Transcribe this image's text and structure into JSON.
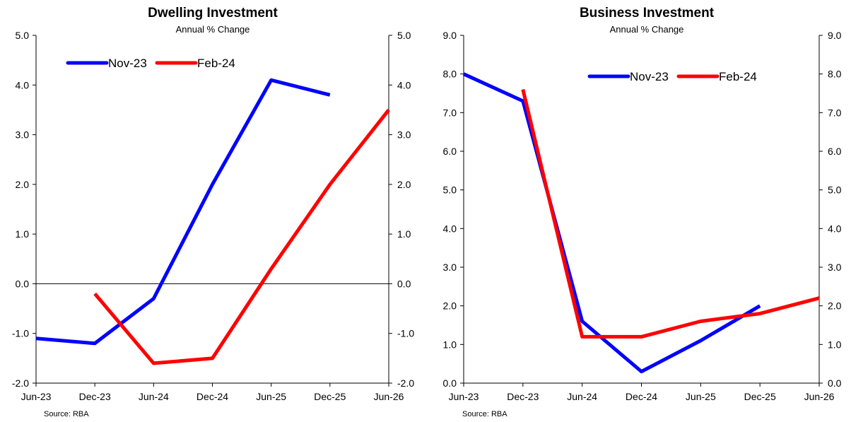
{
  "chart_data": [
    {
      "type": "line",
      "title": "Dwelling Investment",
      "subtitle": "Annual % Change",
      "source": "Source: RBA",
      "categories": [
        "Jun-23",
        "Dec-23",
        "Jun-24",
        "Dec-24",
        "Jun-25",
        "Dec-25",
        "Jun-26"
      ],
      "ylim": [
        -2.0,
        5.0
      ],
      "yticks": [
        "-2.0",
        "-1.0",
        "0.0",
        "1.0",
        "2.0",
        "3.0",
        "4.0",
        "5.0"
      ],
      "legend_position": "top-left",
      "grid": false,
      "zero_line": true,
      "series": [
        {
          "name": "Nov-23",
          "color": "#0000ff",
          "values": [
            -1.1,
            -1.2,
            -0.3,
            2.0,
            4.1,
            3.8,
            null
          ]
        },
        {
          "name": "Feb-24",
          "color": "#ff0000",
          "values": [
            null,
            -0.2,
            -1.6,
            -1.5,
            0.3,
            2.0,
            3.5
          ]
        }
      ]
    },
    {
      "type": "line",
      "title": "Business Investment",
      "subtitle": "Annual % Change",
      "source": "Source: RBA",
      "categories": [
        "Jun-23",
        "Dec-23",
        "Jun-24",
        "Dec-24",
        "Jun-25",
        "Dec-25",
        "Jun-26"
      ],
      "ylim": [
        0.0,
        9.0
      ],
      "yticks": [
        "0.0",
        "1.0",
        "2.0",
        "3.0",
        "4.0",
        "5.0",
        "6.0",
        "7.0",
        "8.0",
        "9.0"
      ],
      "legend_position": "top-right",
      "grid": false,
      "zero_line": false,
      "series": [
        {
          "name": "Nov-23",
          "color": "#0000ff",
          "values": [
            8.0,
            7.3,
            1.6,
            0.3,
            1.1,
            2.0,
            null
          ]
        },
        {
          "name": "Feb-24",
          "color": "#ff0000",
          "values": [
            null,
            7.6,
            1.2,
            1.2,
            1.6,
            1.8,
            2.2
          ]
        }
      ]
    }
  ]
}
